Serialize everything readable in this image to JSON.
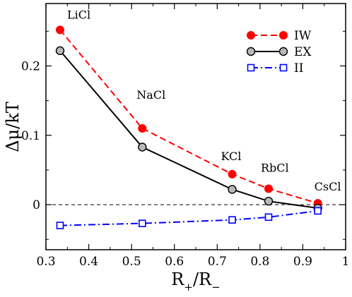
{
  "chart_data": {
    "type": "line",
    "xlabel": "R+/R−",
    "xlabel_main": "R",
    "xlabel_sub1": "+",
    "xlabel_sep": "/R",
    "xlabel_sub2": "−",
    "ylabel": "Δμ/kT",
    "xlim": [
      0.3,
      1.0
    ],
    "ylim": [
      -0.065,
      0.29
    ],
    "xticks": [
      0.3,
      0.4,
      0.5,
      0.6,
      0.7,
      0.8,
      0.9,
      1.0
    ],
    "xtick_labels": [
      "0.3",
      "0.4",
      "0.5",
      "0.6",
      "0.7",
      "0.8",
      "0.9",
      "1"
    ],
    "yticks": [
      0,
      0.1,
      0.2
    ],
    "ytick_labels": [
      "0",
      "0.1",
      "0.2"
    ],
    "reference_line_y": 0,
    "grid": false,
    "legend_position": "top-right",
    "x": [
      0.333,
      0.525,
      0.735,
      0.82,
      0.935
    ],
    "annotations": [
      {
        "text": "LiCl",
        "x": 0.333,
        "y": 0.252
      },
      {
        "text": "NaCl",
        "x": 0.525,
        "y": 0.11
      },
      {
        "text": "KCl",
        "x": 0.735,
        "y": 0.044
      },
      {
        "text": "RbCl",
        "x": 0.82,
        "y": 0.023
      },
      {
        "text": "CsCl",
        "x": 0.935,
        "y": 0.002
      }
    ],
    "series": [
      {
        "name": "IW",
        "color": "#ff0000",
        "line": "dashed",
        "marker": "filled-circle",
        "values": [
          0.252,
          0.11,
          0.044,
          0.023,
          0.002
        ]
      },
      {
        "name": "EX",
        "color": "#000000",
        "line": "solid",
        "marker": "gray-circle",
        "values": [
          0.222,
          0.083,
          0.022,
          0.005,
          -0.005
        ]
      },
      {
        "name": "II",
        "color": "#0000ff",
        "line": "dash-dot",
        "marker": "open-square",
        "values": [
          -0.03,
          -0.027,
          -0.022,
          -0.018,
          -0.009
        ]
      }
    ]
  }
}
